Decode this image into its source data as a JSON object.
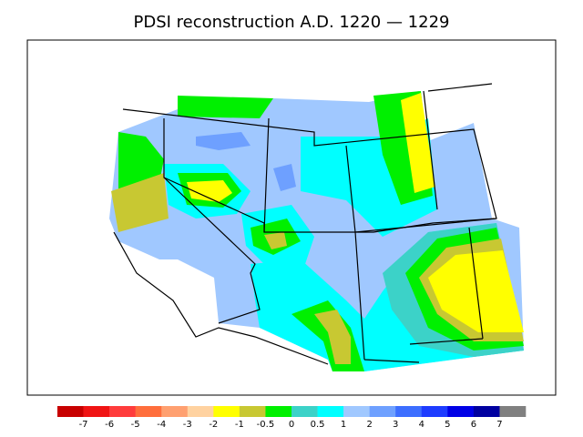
{
  "title": "PDSI reconstruction A.D. 1220 — 1229",
  "colorbar": {
    "colors": [
      "#c80000",
      "#f01414",
      "#ff3c3c",
      "#ff6e3c",
      "#ffa070",
      "#ffd2a0",
      "#ffff00",
      "#c8c832",
      "#00f000",
      "#3cd2c8",
      "#00ffff",
      "#a0c8ff",
      "#6ea0ff",
      "#3c6eff",
      "#1e3cff",
      "#0000e6",
      "#0000a0",
      "#808080"
    ],
    "labels": [
      "-7",
      "-6",
      "-5",
      "-4",
      "-3",
      "-2",
      "-1",
      "-0.5",
      "0",
      "0.5",
      "1",
      "2",
      "3",
      "4",
      "5",
      "6",
      "7"
    ]
  }
}
